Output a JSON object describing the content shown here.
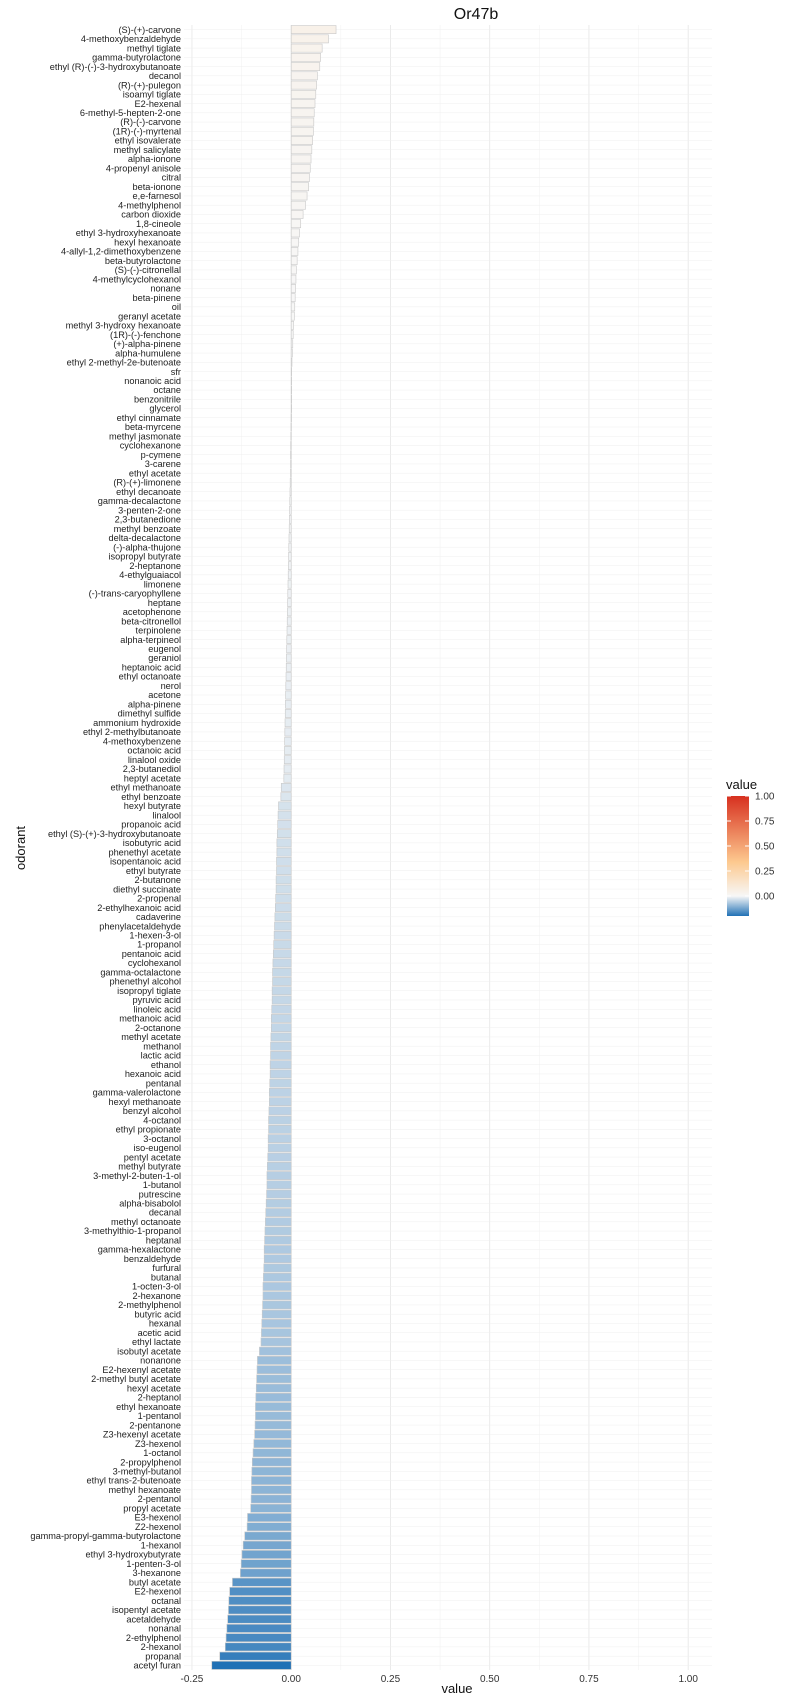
{
  "chart_data": {
    "type": "bar",
    "orientation": "horizontal",
    "title": "Or47b",
    "xlabel": "value",
    "ylabel": "odorant",
    "xlim": [
      -0.27,
      1.06
    ],
    "x_ticks": [
      -0.25,
      0,
      0.25,
      0.5,
      0.75,
      1
    ],
    "x_tick_labels": [
      "-0.25",
      "0.00",
      "0.25",
      "0.50",
      "0.75",
      "1.00"
    ],
    "grid": true,
    "legend": {
      "title": "value",
      "position": "right",
      "ticks": [
        1,
        0.75,
        0.5,
        0.25,
        0
      ],
      "tick_labels": [
        "1.00",
        "0.75",
        "0.50",
        "0.25",
        "0.00"
      ],
      "range": [
        -0.2,
        1.0
      ],
      "colors": {
        "low": "#2171b5",
        "mid": "#f7f7f7",
        "high": "#d7301f"
      }
    },
    "categories": [
      "(S)-(+)-carvone",
      "4-methoxybenzaldehyde",
      "methyl tiglate",
      "gamma-butyrolactone",
      "ethyl (R)-(-)-3-hydroxybutanoate",
      "decanol",
      "(R)-(+)-pulegon",
      "isoamyl tiglate",
      "E2-hexenal",
      "6-methyl-5-hepten-2-one",
      "(R)-(-)-carvone",
      "(1R)-(-)-myrtenal",
      "ethyl isovalerate",
      "methyl salicylate",
      "alpha-ionone",
      "4-propenyl anisole",
      "citral",
      "beta-ionone",
      "e,e-farnesol",
      "4-methylphenol",
      "carbon dioxide",
      "1,8-cineole",
      "ethyl 3-hydroxyhexanoate",
      "hexyl hexanoate",
      "4-allyl-1,2-dimethoxybenzene",
      "beta-butyrolactone",
      "(S)-(-)-citronellal",
      "4-methylcyclohexanol",
      "nonane",
      "beta-pinene",
      "oil",
      "geranyl acetate",
      "methyl 3-hydroxy hexanoate",
      "(1R)-(-)-fenchone",
      "(+)-alpha-pinene",
      "alpha-humulene",
      "ethyl 2-methyl-2e-butenoate",
      "sfr",
      "nonanoic acid",
      "octane",
      "benzonitrile",
      "glycerol",
      "ethyl cinnamate",
      "beta-myrcene",
      "methyl jasmonate",
      "cyclohexanone",
      "p-cymene",
      "3-carene",
      "ethyl acetate",
      "(R)-(+)-limonene",
      "ethyl decanoate",
      "gamma-decalactone",
      "3-penten-2-one",
      "2,3-butanedione",
      "methyl benzoate",
      "delta-decalactone",
      "(-)-alpha-thujone",
      "isopropyl butyrate",
      "2-heptanone",
      "4-ethylguaiacol",
      "limonene",
      "(-)-trans-caryophyllene",
      "heptane",
      "acetophenone",
      "beta-citronellol",
      "terpinolene",
      "alpha-terpineol",
      "eugenol",
      "geraniol",
      "heptanoic acid",
      "ethyl octanoate",
      "nerol",
      "acetone",
      "alpha-pinene",
      "dimethyl sulfide",
      "ammonium hydroxide",
      "ethyl 2-methylbutanoate",
      "4-methoxybenzene",
      "octanoic acid",
      "linalool oxide",
      "2,3-butanediol",
      "heptyl acetate",
      "ethyl methanoate",
      "ethyl benzoate",
      "hexyl butyrate",
      "linalool",
      "propanoic acid",
      "ethyl (S)-(+)-3-hydroxybutanoate",
      "isobutyric acid",
      "phenethyl acetate",
      "isopentanoic acid",
      "ethyl butyrate",
      "2-butanone",
      "diethyl succinate",
      "2-propenal",
      "2-ethylhexanoic acid",
      "cadaverine",
      "phenylacetaldehyde",
      "1-hexen-3-ol",
      "1-propanol",
      "pentanoic acid",
      "cyclohexanol",
      "gamma-octalactone",
      "phenethyl alcohol",
      "isopropyl tiglate",
      "pyruvic acid",
      "linoleic acid",
      "methanoic acid",
      "2-octanone",
      "methyl acetate",
      "methanol",
      "lactic acid",
      "ethanol",
      "hexanoic acid",
      "pentanal",
      "gamma-valerolactone",
      "hexyl methanoate",
      "benzyl alcohol",
      "4-octanol",
      "ethyl propionate",
      "3-octanol",
      "iso-eugenol",
      "pentyl acetate",
      "methyl butyrate",
      "3-methyl-2-buten-1-ol",
      "1-butanol",
      "putrescine",
      "alpha-bisabolol",
      "decanal",
      "methyl octanoate",
      "3-methylthio-1-propanol",
      "heptanal",
      "gamma-hexalactone",
      "benzaldehyde",
      "furfural",
      "butanal",
      "1-octen-3-ol",
      "2-hexanone",
      "2-methylphenol",
      "butyric acid",
      "hexanal",
      "acetic acid",
      "ethyl lactate",
      "isobutyl acetate",
      "nonanone",
      "E2-hexenyl acetate",
      "2-methyl butyl acetate",
      "hexyl acetate",
      "2-heptanol",
      "ethyl hexanoate",
      "1-pentanol",
      "2-pentanone",
      "Z3-hexenyl acetate",
      "Z3-hexenol",
      "1-octanol",
      "2-propylphenol",
      "3-methyl-butanol",
      "ethyl trans-2-butenoate",
      "methyl hexanoate",
      "2-pentanol",
      "propyl acetate",
      "E3-hexenol",
      "Z2-hexenol",
      "gamma-propyl-gamma-butyrolactone",
      "1-hexanol",
      "ethyl 3-hydroxybutyrate",
      "1-penten-3-ol",
      "3-hexanone",
      "butyl acetate",
      "E2-hexenol",
      "octanal",
      "isopentyl acetate",
      "acetaldehyde",
      "nonanal",
      "2-ethylphenol",
      "2-hexanol",
      "propanal",
      "acetyl furan"
    ],
    "values": [
      0.113,
      0.094,
      0.078,
      0.074,
      0.072,
      0.066,
      0.064,
      0.062,
      0.06,
      0.058,
      0.057,
      0.056,
      0.054,
      0.052,
      0.05,
      0.048,
      0.046,
      0.044,
      0.04,
      0.036,
      0.03,
      0.024,
      0.021,
      0.019,
      0.017,
      0.015,
      0.013,
      0.012,
      0.011,
      0.01,
      0.009,
      0.008,
      0.006,
      0.005,
      0.004,
      0.003,
      0.002,
      0.001,
      0.0005,
      0.0003,
      0.0002,
      0.0001,
      -0.0003,
      -0.0006,
      -0.0009,
      -0.0012,
      -0.0015,
      -0.0018,
      -0.002,
      -0.0025,
      -0.003,
      -0.0035,
      -0.004,
      -0.0045,
      -0.005,
      -0.0055,
      -0.006,
      -0.0065,
      -0.007,
      -0.0075,
      -0.008,
      -0.0085,
      -0.009,
      -0.0095,
      -0.01,
      -0.0105,
      -0.011,
      -0.0115,
      -0.012,
      -0.0125,
      -0.013,
      -0.0135,
      -0.014,
      -0.0145,
      -0.015,
      -0.0155,
      -0.016,
      -0.0165,
      -0.017,
      -0.0175,
      -0.018,
      -0.0185,
      -0.025,
      -0.026,
      -0.032,
      -0.033,
      -0.034,
      -0.035,
      -0.036,
      -0.036,
      -0.037,
      -0.037,
      -0.038,
      -0.038,
      -0.039,
      -0.04,
      -0.041,
      -0.042,
      -0.043,
      -0.044,
      -0.045,
      -0.046,
      -0.047,
      -0.047,
      -0.048,
      -0.048,
      -0.049,
      -0.05,
      -0.05,
      -0.051,
      -0.052,
      -0.052,
      -0.053,
      -0.053,
      -0.054,
      -0.055,
      -0.055,
      -0.056,
      -0.057,
      -0.057,
      -0.058,
      -0.058,
      -0.059,
      -0.06,
      -0.061,
      -0.061,
      -0.062,
      -0.063,
      -0.064,
      -0.065,
      -0.066,
      -0.067,
      -0.068,
      -0.068,
      -0.069,
      -0.07,
      -0.071,
      -0.071,
      -0.072,
      -0.073,
      -0.074,
      -0.075,
      -0.076,
      -0.08,
      -0.085,
      -0.086,
      -0.087,
      -0.088,
      -0.089,
      -0.09,
      -0.09,
      -0.091,
      -0.092,
      -0.094,
      -0.096,
      -0.098,
      -0.099,
      -0.1,
      -0.1,
      -0.101,
      -0.102,
      -0.11,
      -0.111,
      -0.117,
      -0.121,
      -0.124,
      -0.126,
      -0.128,
      -0.148,
      -0.155,
      -0.157,
      -0.158,
      -0.16,
      -0.162,
      -0.164,
      -0.166,
      -0.18,
      -0.2
    ]
  }
}
